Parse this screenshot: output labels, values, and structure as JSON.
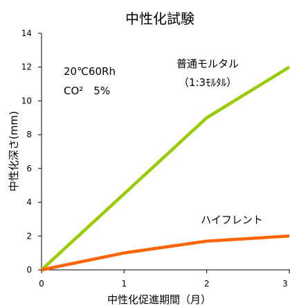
{
  "chart_data": {
    "type": "line",
    "title": "中性化試験",
    "xlabel": "中性化促進期間（月）",
    "ylabel": "中性化深さ(mm)",
    "xlim": [
      0,
      3
    ],
    "ylim": [
      0,
      14
    ],
    "xticks": [
      "0",
      "1",
      "2",
      "3"
    ],
    "yticks": [
      "0",
      "2",
      "4",
      "6",
      "8",
      "10",
      "12",
      "14"
    ],
    "grid": false,
    "conditions": [
      "20℃60Rh",
      "CO²　5%"
    ],
    "series": [
      {
        "name": "普通モルタル",
        "sublabel": "（1:3ﾓﾙﾀﾙ）",
        "color": "#99cc00",
        "x": [
          0,
          1,
          2,
          3
        ],
        "y": [
          0,
          4.5,
          9,
          12
        ]
      },
      {
        "name": "ハイフレント",
        "sublabel": "",
        "color": "#ff6600",
        "x": [
          0,
          1,
          2,
          3
        ],
        "y": [
          0,
          1,
          1.7,
          2
        ]
      }
    ]
  }
}
